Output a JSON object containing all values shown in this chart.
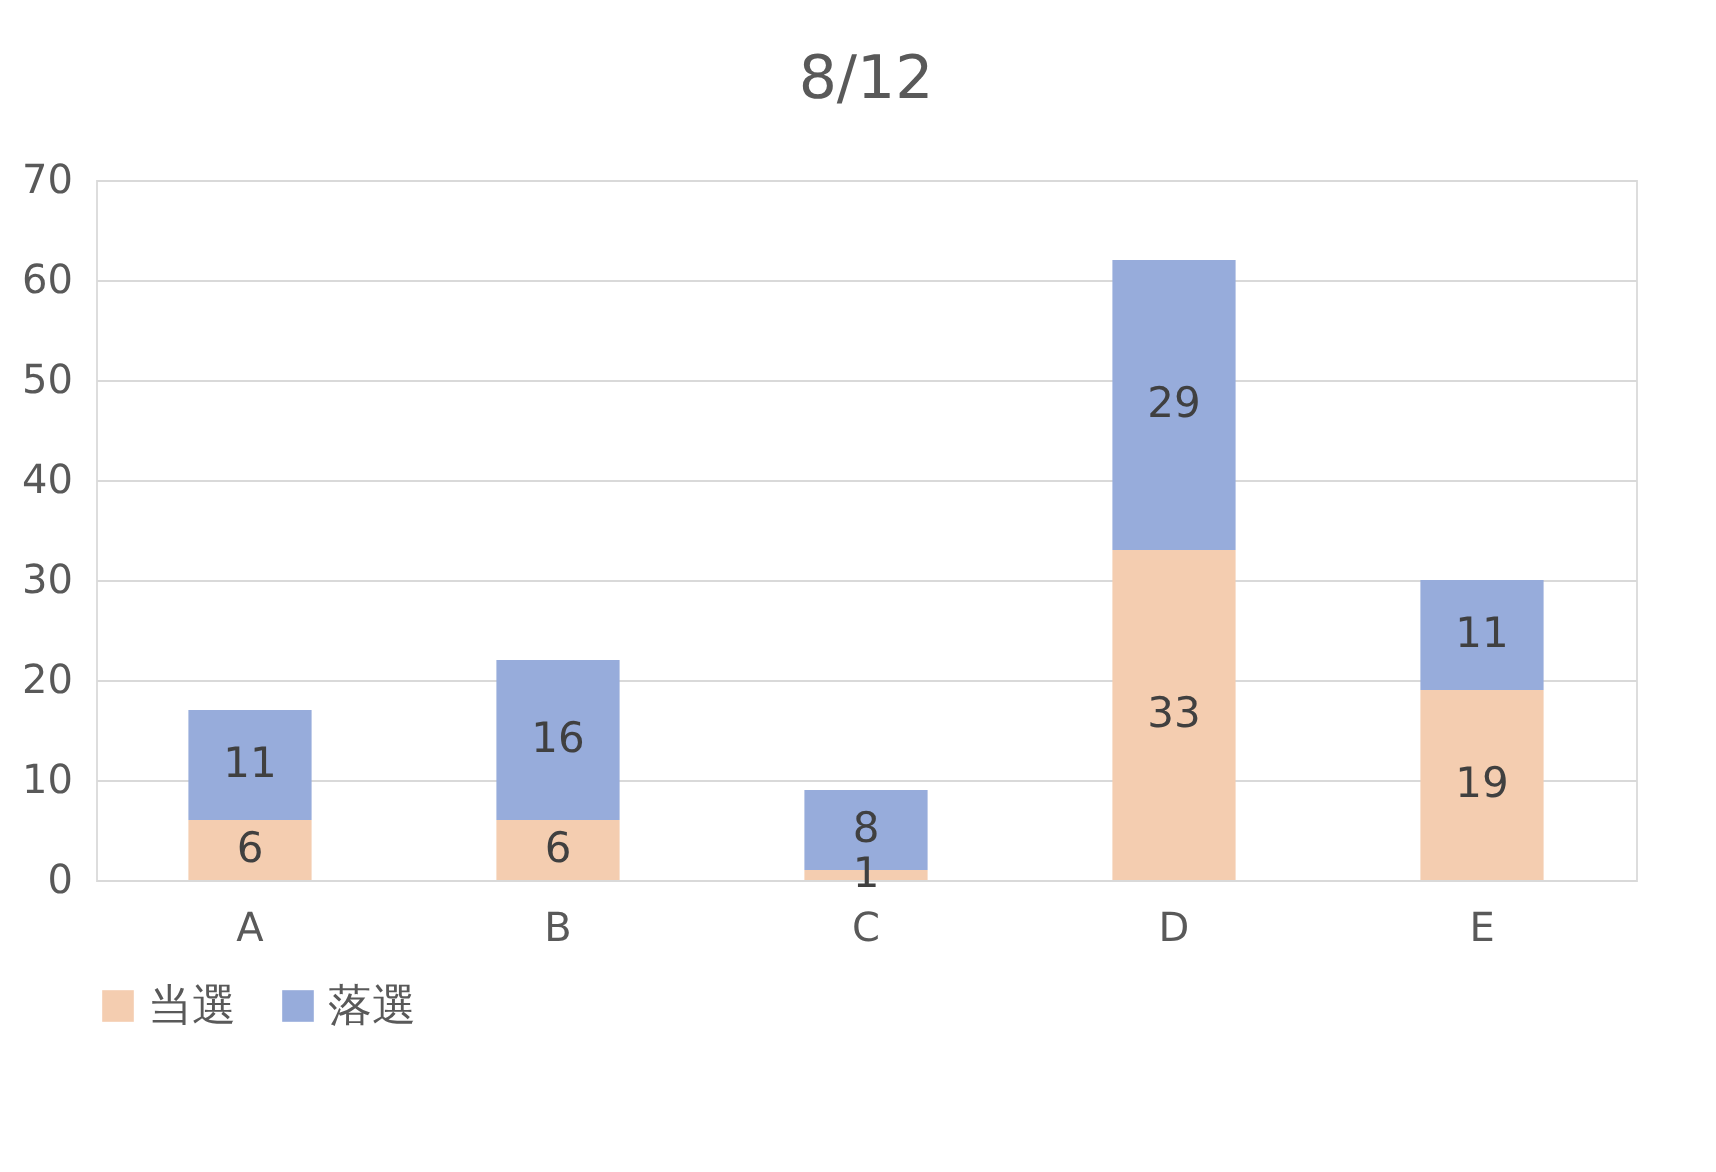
{
  "chart_data": {
    "type": "bar",
    "title": "8/12",
    "stacked": true,
    "categories": [
      "A",
      "B",
      "C",
      "D",
      "E"
    ],
    "series": [
      {
        "name": "当選",
        "color": "#f4cdb0",
        "values": [
          6,
          6,
          1,
          33,
          19
        ]
      },
      {
        "name": "落選",
        "color": "#97acdb",
        "values": [
          11,
          16,
          8,
          29,
          11
        ]
      }
    ],
    "ylim": [
      0,
      70
    ],
    "yticks": [
      0,
      10,
      20,
      30,
      40,
      50,
      60,
      70
    ],
    "grid": "y",
    "legend": "bottom",
    "data_labels": true
  }
}
